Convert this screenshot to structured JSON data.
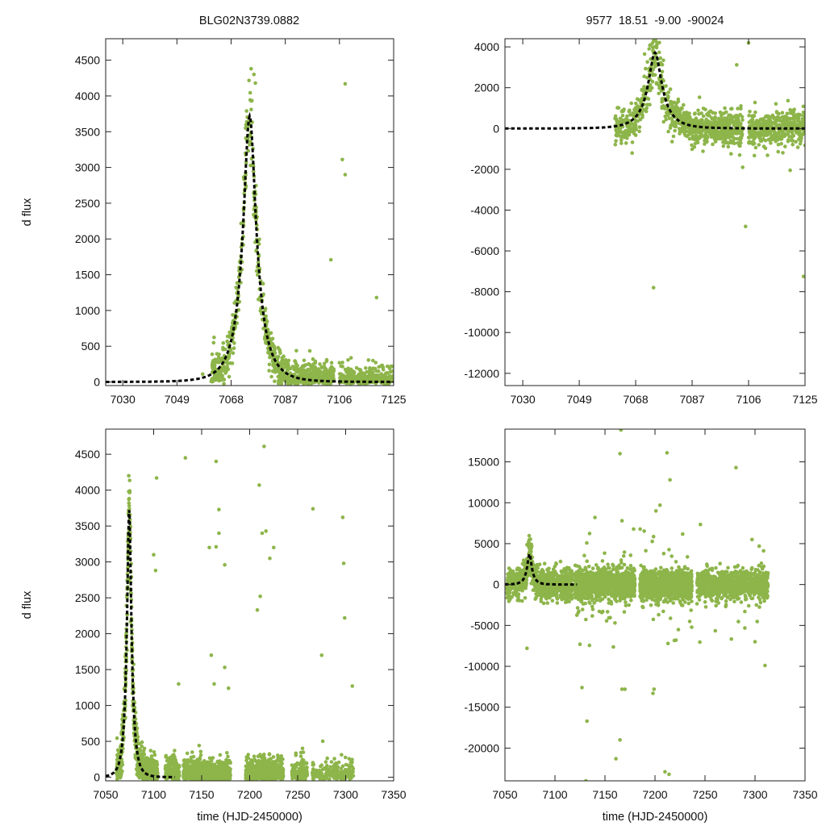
{
  "figure": {
    "left_title": "BLG02N3739.0882",
    "right_title": "9577  18.51  -9.00  -90024"
  },
  "colors": {
    "points": "#8db54a",
    "model": "#000000",
    "axes": "#222222"
  },
  "chart_data": [
    {
      "id": "top-left",
      "type": "scatter",
      "title": "BLG02N3739.0882",
      "xlabel": "",
      "ylabel": "d flux",
      "xlim": [
        7024,
        7125
      ],
      "ylim": [
        -50,
        4800
      ],
      "xticks": [
        7030,
        7049,
        7068,
        7087,
        7106,
        7125
      ],
      "yticks": [
        0,
        500,
        1000,
        1500,
        2000,
        2500,
        3000,
        3500,
        4000,
        4500
      ],
      "series": [
        {
          "name": "observations",
          "kind": "points",
          "seed": 11,
          "segments": [
            [
              7061,
              7076,
              260
            ],
            [
              7076,
              7093,
              320
            ],
            [
              7093,
              7104,
              300
            ],
            [
              7106,
              7125,
              350
            ]
          ]
        },
        {
          "name": "model",
          "kind": "pscpen-curve",
          "t0": 7074.5,
          "tE": 7.2,
          "peak": 3720,
          "x_range": [
            7024,
            7125
          ]
        }
      ],
      "outliers": [
        [
          7075,
          4380
        ],
        [
          7076,
          4300
        ],
        [
          7076.5,
          4180
        ],
        [
          7108,
          4170
        ],
        [
          7107,
          3110
        ],
        [
          7108,
          2900
        ],
        [
          7103,
          1710
        ],
        [
          7119,
          1180
        ],
        [
          7058,
          110
        ]
      ]
    },
    {
      "id": "top-right",
      "type": "scatter",
      "title": "9577  18.51  -9.00  -90024",
      "xlabel": "",
      "ylabel": "",
      "xlim": [
        7024,
        7125
      ],
      "ylim": [
        -12600,
        4400
      ],
      "xticks": [
        7030,
        7049,
        7068,
        7087,
        7106,
        7125
      ],
      "yticks": [
        -12000,
        -10000,
        -8000,
        -6000,
        -4000,
        -2000,
        0,
        2000,
        4000
      ],
      "series": [
        {
          "name": "observations",
          "kind": "points",
          "seed": 23,
          "segments": [
            [
              7061,
              7076,
              260
            ],
            [
              7076,
              7093,
              320
            ],
            [
              7093,
              7104,
              300
            ],
            [
              7106,
              7125,
              400
            ]
          ]
        },
        {
          "name": "model",
          "kind": "pscpen-curve",
          "t0": 7074.5,
          "tE": 7.2,
          "peak": 3720,
          "x_range": [
            7024,
            7125
          ]
        }
      ],
      "outliers": [
        [
          7074,
          -7800
        ],
        [
          7105,
          -4800
        ],
        [
          7103,
          -1300
        ],
        [
          7104,
          -1900
        ],
        [
          7124.5,
          -7250
        ],
        [
          7079,
          -150
        ],
        [
          7120,
          -2050
        ],
        [
          7102,
          3120
        ],
        [
          7106,
          4200
        ],
        [
          7074,
          4300
        ],
        [
          7071,
          3650
        ]
      ]
    },
    {
      "id": "bottom-left",
      "type": "scatter",
      "title": "",
      "xlabel": "time (HJD-2450000)",
      "ylabel": "d flux",
      "xlim": [
        7050,
        7350
      ],
      "ylim": [
        -50,
        4850
      ],
      "xticks": [
        7050,
        7100,
        7150,
        7200,
        7250,
        7300,
        7350
      ],
      "yticks": [
        0,
        500,
        1000,
        1500,
        2000,
        2500,
        3000,
        3500,
        4000,
        4500
      ],
      "series": [
        {
          "name": "observations",
          "kind": "points",
          "seed": 37,
          "segments": [
            [
              7061,
              7076,
              240
            ],
            [
              7076,
              7093,
              280
            ],
            [
              7093,
              7104,
              260
            ],
            [
              7112,
              7127,
              230
            ],
            [
              7131,
              7180,
              900
            ],
            [
              7196,
              7235,
              800
            ],
            [
              7244,
              7260,
              180
            ],
            [
              7265,
              7308,
              220
            ]
          ]
        },
        {
          "name": "model",
          "kind": "pscpen-curve",
          "t0": 7074.5,
          "tE": 7.2,
          "peak": 3720,
          "x_range": [
            7050,
            7122
          ]
        }
      ],
      "outliers": [
        [
          7103,
          4170
        ],
        [
          7133,
          4450
        ],
        [
          7165,
          4400
        ],
        [
          7215,
          4610
        ],
        [
          7210,
          4070
        ],
        [
          7266,
          3740
        ],
        [
          7297,
          3620
        ],
        [
          7168,
          3730
        ],
        [
          7168,
          3400
        ],
        [
          7158,
          3200
        ],
        [
          7165,
          3210
        ],
        [
          7174,
          2960
        ],
        [
          7213,
          3400
        ],
        [
          7217,
          3430
        ],
        [
          7225,
          3200
        ],
        [
          7221,
          3050
        ],
        [
          7211,
          2520
        ],
        [
          7208,
          2330
        ],
        [
          7298,
          2980
        ],
        [
          7299,
          2220
        ],
        [
          7100,
          3100
        ],
        [
          7102,
          2880
        ],
        [
          7275,
          1700
        ],
        [
          7307,
          1270
        ],
        [
          7160,
          1700
        ],
        [
          7163,
          1300
        ],
        [
          7174,
          1530
        ],
        [
          7178,
          1240
        ],
        [
          7126,
          1300
        ]
      ]
    },
    {
      "id": "bottom-right",
      "type": "scatter",
      "title": "",
      "xlabel": "time (HJD-2450000)",
      "ylabel": "",
      "xlim": [
        7050,
        7350
      ],
      "ylim": [
        -24000,
        19000
      ],
      "xticks": [
        7050,
        7100,
        7150,
        7200,
        7250,
        7300,
        7350
      ],
      "yticks": [
        -20000,
        -15000,
        -10000,
        -5000,
        0,
        5000,
        10000,
        15000
      ],
      "series": [
        {
          "name": "observations",
          "kind": "points",
          "seed": 53,
          "segments": [
            [
              7052,
              7076,
              300
            ],
            [
              7076,
              7093,
              320
            ],
            [
              7093,
              7118,
              360
            ],
            [
              7120,
              7180,
              1200
            ],
            [
              7185,
              7237,
              1200
            ],
            [
              7242,
              7313,
              900
            ]
          ]
        },
        {
          "name": "model",
          "kind": "pscpen-curve",
          "t0": 7074.5,
          "tE": 7.2,
          "peak": 3720,
          "x_range": [
            7050,
            7122
          ]
        }
      ],
      "outliers": [
        [
          7166,
          18900
        ],
        [
          7165,
          16000
        ],
        [
          7212,
          16100
        ],
        [
          7215,
          12800
        ],
        [
          7281,
          14300
        ],
        [
          7205,
          9700
        ],
        [
          7201,
          9000
        ],
        [
          7167,
          7800
        ],
        [
          7297,
          5500
        ],
        [
          7127,
          -12600
        ],
        [
          7125,
          -7300
        ],
        [
          7132,
          -16700
        ],
        [
          7131,
          -24000
        ],
        [
          7161,
          -21300
        ],
        [
          7165,
          -19000
        ],
        [
          7167,
          -12800
        ],
        [
          7170,
          -12800
        ],
        [
          7199,
          -12800
        ],
        [
          7198,
          -13300
        ],
        [
          7214,
          -23200
        ],
        [
          7210,
          -22900
        ],
        [
          7310,
          -9900
        ],
        [
          7300,
          -7000
        ],
        [
          7072,
          -7800
        ],
        [
          7160,
          -4700
        ],
        [
          7213,
          -7200
        ],
        [
          7221,
          -6800
        ]
      ]
    }
  ]
}
